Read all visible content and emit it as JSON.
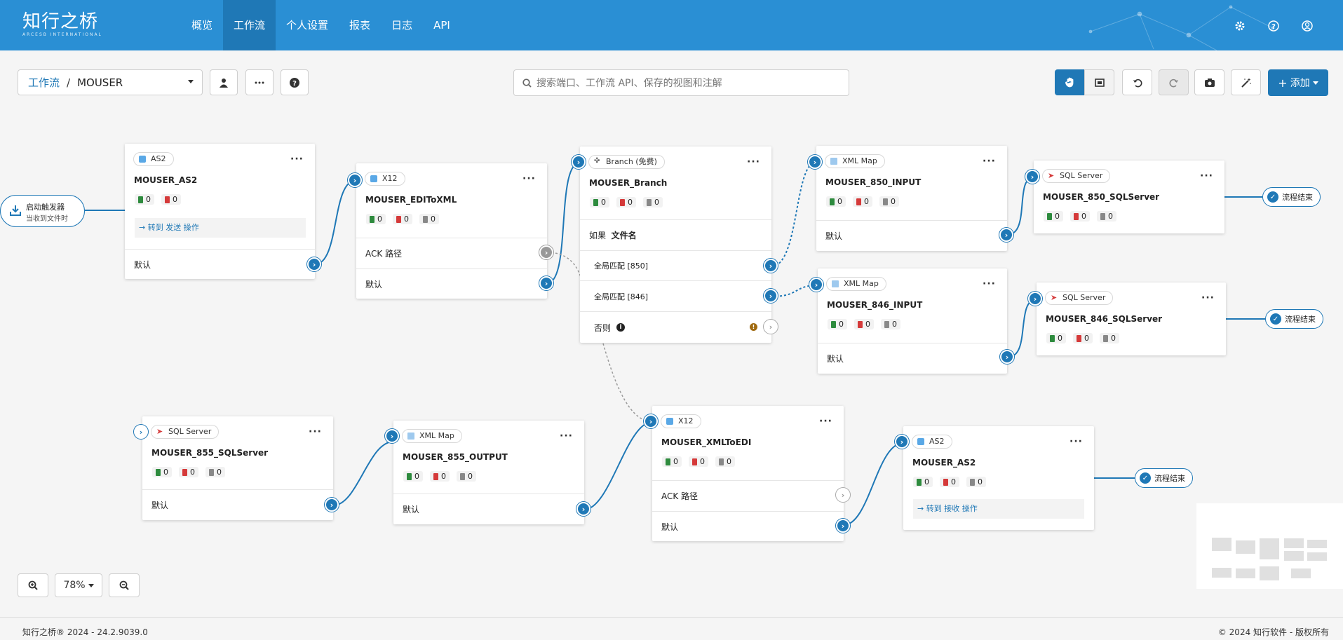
{
  "header": {
    "logo_main": "知行之桥",
    "logo_sub": "ARCESB INTERNATIONAL",
    "nav": [
      "概览",
      "工作流",
      "个人设置",
      "报表",
      "日志",
      "API"
    ],
    "active_nav": "工作流"
  },
  "toolbar": {
    "breadcrumb_root": "工作流",
    "breadcrumb_sep": "/",
    "breadcrumb_current": "MOUSER",
    "search_placeholder": "搜索端口、工作流 API、保存的视图和注解",
    "add_label": "添加"
  },
  "trigger": {
    "title": "启动触发器",
    "subtitle": "当收到文件时"
  },
  "nodes": {
    "as2_in": {
      "type": "AS2",
      "name": "MOUSER_AS2",
      "counts": [
        "0",
        "0"
      ],
      "goto": "→ 转到 发送 操作",
      "row_default": "默认"
    },
    "x12_in": {
      "type": "X12",
      "name": "MOUSER_EDIToXML",
      "counts": [
        "0",
        "0",
        "0"
      ],
      "row_ack": "ACK 路径",
      "row_default": "默认"
    },
    "branch": {
      "type": "Branch (免费)",
      "name": "MOUSER_Branch",
      "counts": [
        "0",
        "0",
        "0"
      ],
      "if_label": "如果",
      "if_field": "文件名",
      "case1": "全局匹配 [850]",
      "case2": "全局匹配 [846]",
      "else": "否则"
    },
    "xml850": {
      "type": "XML Map",
      "name": "MOUSER_850_INPUT",
      "counts": [
        "0",
        "0",
        "0"
      ],
      "row_default": "默认"
    },
    "sql850": {
      "type": "SQL Server",
      "name": "MOUSER_850_SQLServer",
      "counts": [
        "0",
        "0",
        "0"
      ]
    },
    "xml846": {
      "type": "XML Map",
      "name": "MOUSER_846_INPUT",
      "counts": [
        "0",
        "0",
        "0"
      ],
      "row_default": "默认"
    },
    "sql846": {
      "type": "SQL Server",
      "name": "MOUSER_846_SQLServer",
      "counts": [
        "0",
        "0",
        "0"
      ]
    },
    "sql855": {
      "type": "SQL Server",
      "name": "MOUSER_855_SQLServer",
      "counts": [
        "0",
        "0",
        "0"
      ],
      "row_default": "默认"
    },
    "xml855": {
      "type": "XML Map",
      "name": "MOUSER_855_OUTPUT",
      "counts": [
        "0",
        "0",
        "0"
      ],
      "row_default": "默认"
    },
    "x12_out": {
      "type": "X12",
      "name": "MOUSER_XMLToEDI",
      "counts": [
        "0",
        "0",
        "0"
      ],
      "row_ack": "ACK 路径",
      "row_default": "默认"
    },
    "as2_out": {
      "type": "AS2",
      "name": "MOUSER_AS2",
      "counts": [
        "0",
        "0",
        "0"
      ],
      "goto": "→ 转到 接收 操作"
    }
  },
  "end_label": "流程结束",
  "zoom": {
    "level": "78%"
  },
  "footer": {
    "left": "知行之桥® 2024 - 24.2.9039.0",
    "right": "© 2024 知行软件 - 版权所有"
  },
  "colors": {
    "primary": "#1f78b6",
    "header": "#2a8fd4",
    "success": "#2e8b3e",
    "error": "#d53a3a"
  }
}
